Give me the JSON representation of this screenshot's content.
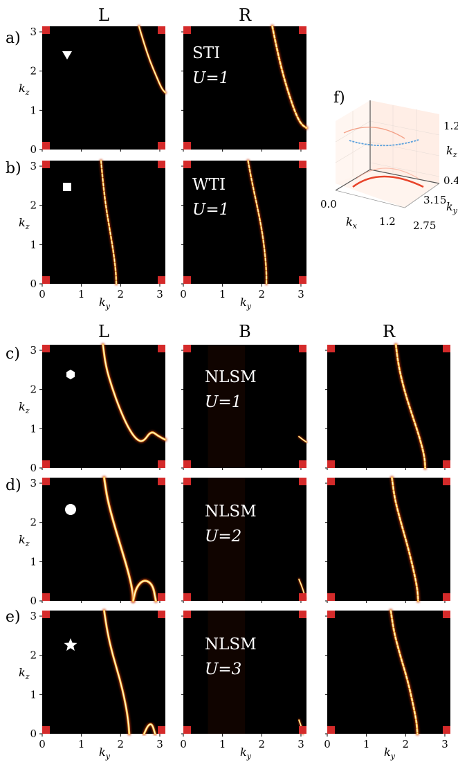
{
  "colors": {
    "background": "#000000",
    "arc_core": "#ffffd0",
    "arc_mid": "#ffb23a",
    "arc_outer": "#c8330a",
    "corner_marker": "#d42a2a",
    "annotation": "#ffffff"
  },
  "column_headers": {
    "top_left": "L",
    "top_right": "R",
    "bottom_left": "L",
    "bottom_mid": "B",
    "bottom_right": "R"
  },
  "axis_labels": {
    "y_base": "k",
    "y_sub": "z",
    "x_base": "k",
    "x_sub": "y",
    "x_sub_alt": "y"
  },
  "ticks": {
    "x": [
      "0",
      "1",
      "2",
      "3"
    ],
    "y": [
      "0",
      "1",
      "2",
      "3"
    ]
  },
  "rows": [
    {
      "label": "a)",
      "phase": "STI",
      "u_text": "U=1",
      "marker": "triangle-down"
    },
    {
      "label": "b)",
      "phase": "WTI",
      "u_text": "U=1",
      "marker": "square"
    },
    {
      "label": "c)",
      "phase": "NLSM",
      "u_text": "U=1",
      "marker": "hexagon"
    },
    {
      "label": "d)",
      "phase": "NLSM",
      "u_text": "U=2",
      "marker": "circle"
    },
    {
      "label": "e)",
      "phase": "NLSM",
      "u_text": "U=3",
      "marker": "star"
    }
  ],
  "inset": {
    "label": "f)",
    "z_ticks": [
      "1.2",
      "0.4"
    ],
    "z_label": "k",
    "z_sub": "z",
    "y_ticks": [
      "3.15",
      "2.75"
    ],
    "y_label": "k",
    "y_sub": "y",
    "x_ticks": [
      "0.0",
      "1.2"
    ],
    "x_label": "k",
    "x_sub": "x",
    "curve_colors": [
      "#e8442a",
      "#5aa0dc",
      "#e8442a"
    ]
  },
  "chart_data": {
    "type": "heatmap",
    "description_units": "spectral weight arcs in (k_y, k_z), both axes 0 to pi",
    "xlim": [
      0,
      3.1416
    ],
    "ylim": [
      0,
      3.1416
    ],
    "corner_markers": [
      [
        0,
        0
      ],
      [
        3.1416,
        0
      ],
      [
        0,
        3.1416
      ],
      [
        3.1416,
        3.1416
      ]
    ],
    "panels": [
      {
        "row": "a)",
        "col": "L",
        "arcs": [
          {
            "points": [
              [
                2.47,
                3.14
              ],
              [
                2.6,
                2.7
              ],
              [
                2.75,
                2.25
              ],
              [
                2.92,
                1.85
              ],
              [
                3.05,
                1.55
              ],
              [
                3.14,
                1.45
              ]
            ],
            "style": "smooth",
            "width": 1.0
          }
        ]
      },
      {
        "row": "a)",
        "col": "R",
        "arcs": [
          {
            "points": [
              [
                2.27,
                3.14
              ],
              [
                2.38,
                2.6
              ],
              [
                2.52,
                2.0
              ],
              [
                2.68,
                1.45
              ],
              [
                2.85,
                0.95
              ],
              [
                3.0,
                0.65
              ],
              [
                3.14,
                0.55
              ]
            ],
            "style": "dotted",
            "width": 1.2
          }
        ]
      },
      {
        "row": "b)",
        "col": "L",
        "arcs": [
          {
            "points": [
              [
                1.5,
                3.14
              ],
              [
                1.55,
                2.6
              ],
              [
                1.62,
                2.0
              ],
              [
                1.72,
                1.4
              ],
              [
                1.82,
                0.8
              ],
              [
                1.88,
                0.3
              ],
              [
                1.89,
                0.0
              ]
            ],
            "style": "dotted",
            "width": 1.0
          }
        ]
      },
      {
        "row": "b)",
        "col": "R",
        "arcs": [
          {
            "points": [
              [
                1.65,
                3.14
              ],
              [
                1.75,
                2.6
              ],
              [
                1.88,
                2.0
              ],
              [
                2.0,
                1.4
              ],
              [
                2.08,
                0.8
              ],
              [
                2.12,
                0.3
              ],
              [
                2.12,
                0.0
              ]
            ],
            "style": "dotted",
            "width": 1.0
          }
        ]
      },
      {
        "row": "c)",
        "col": "L",
        "arcs": [
          {
            "points": [
              [
                1.55,
                3.14
              ],
              [
                1.62,
                2.6
              ],
              [
                1.78,
                2.05
              ],
              [
                1.98,
                1.5
              ],
              [
                2.18,
                1.05
              ],
              [
                2.4,
                0.72
              ],
              [
                2.58,
                0.66
              ],
              [
                2.78,
                0.95
              ],
              [
                2.95,
                0.82
              ],
              [
                3.14,
                0.72
              ]
            ],
            "style": "smooth",
            "width": 1.2
          }
        ]
      },
      {
        "row": "c)",
        "col": "B",
        "arcs": [
          {
            "points": [
              [
                2.95,
                0.8
              ],
              [
                3.05,
                0.72
              ],
              [
                3.14,
                0.66
              ]
            ],
            "style": "smooth",
            "width": 0.8
          }
        ]
      },
      {
        "row": "c)",
        "col": "R",
        "arcs": [
          {
            "points": [
              [
                1.75,
                3.14
              ],
              [
                1.82,
                2.6
              ],
              [
                1.96,
                2.0
              ],
              [
                2.15,
                1.4
              ],
              [
                2.35,
                0.8
              ],
              [
                2.48,
                0.3
              ],
              [
                2.5,
                0.0
              ]
            ],
            "style": "dotted",
            "width": 1.2
          }
        ]
      },
      {
        "row": "d)",
        "col": "L",
        "arcs": [
          {
            "points": [
              [
                1.58,
                3.14
              ],
              [
                1.66,
                2.6
              ],
              [
                1.82,
                2.0
              ],
              [
                2.0,
                1.4
              ],
              [
                2.18,
                0.8
              ],
              [
                2.3,
                0.3
              ],
              [
                2.32,
                0.0
              ]
            ],
            "style": "smooth",
            "width": 1.3
          },
          {
            "points": [
              [
                2.32,
                0.0
              ],
              [
                2.4,
                0.35
              ],
              [
                2.6,
                0.55
              ],
              [
                2.82,
                0.42
              ],
              [
                2.9,
                0.0
              ]
            ],
            "style": "smooth",
            "width": 1.3
          }
        ]
      },
      {
        "row": "d)",
        "col": "B",
        "arcs": [
          {
            "points": [
              [
                2.95,
                0.55
              ],
              [
                3.05,
                0.3
              ],
              [
                3.12,
                0.05
              ]
            ],
            "style": "smooth",
            "width": 0.8
          }
        ]
      },
      {
        "row": "d)",
        "col": "R",
        "arcs": [
          {
            "points": [
              [
                1.65,
                3.14
              ],
              [
                1.72,
                2.6
              ],
              [
                1.88,
                2.0
              ],
              [
                2.05,
                1.4
              ],
              [
                2.2,
                0.8
              ],
              [
                2.3,
                0.3
              ],
              [
                2.32,
                0.0
              ]
            ],
            "style": "dotted",
            "width": 1.2
          }
        ]
      },
      {
        "row": "e)",
        "col": "L",
        "arcs": [
          {
            "points": [
              [
                1.58,
                3.14
              ],
              [
                1.66,
                2.6
              ],
              [
                1.8,
                2.0
              ],
              [
                1.98,
                1.4
              ],
              [
                2.12,
                0.8
              ],
              [
                2.2,
                0.3
              ],
              [
                2.22,
                0.0
              ]
            ],
            "style": "smooth",
            "width": 1.2
          },
          {
            "points": [
              [
                2.6,
                0.0
              ],
              [
                2.7,
                0.22
              ],
              [
                2.8,
                0.26
              ],
              [
                2.88,
                0.0
              ]
            ],
            "style": "smooth",
            "width": 1.2
          }
        ]
      },
      {
        "row": "e)",
        "col": "B",
        "arcs": [
          {
            "points": [
              [
                2.95,
                0.35
              ],
              [
                3.02,
                0.15
              ],
              [
                3.06,
                0.0
              ]
            ],
            "style": "smooth",
            "width": 0.8
          }
        ]
      },
      {
        "row": "e)",
        "col": "R",
        "arcs": [
          {
            "points": [
              [
                1.62,
                3.14
              ],
              [
                1.7,
                2.6
              ],
              [
                1.86,
                2.0
              ],
              [
                2.04,
                1.4
              ],
              [
                2.18,
                0.8
              ],
              [
                2.28,
                0.3
              ],
              [
                2.3,
                0.0
              ]
            ],
            "style": "dotted",
            "width": 1.2
          }
        ]
      }
    ]
  }
}
